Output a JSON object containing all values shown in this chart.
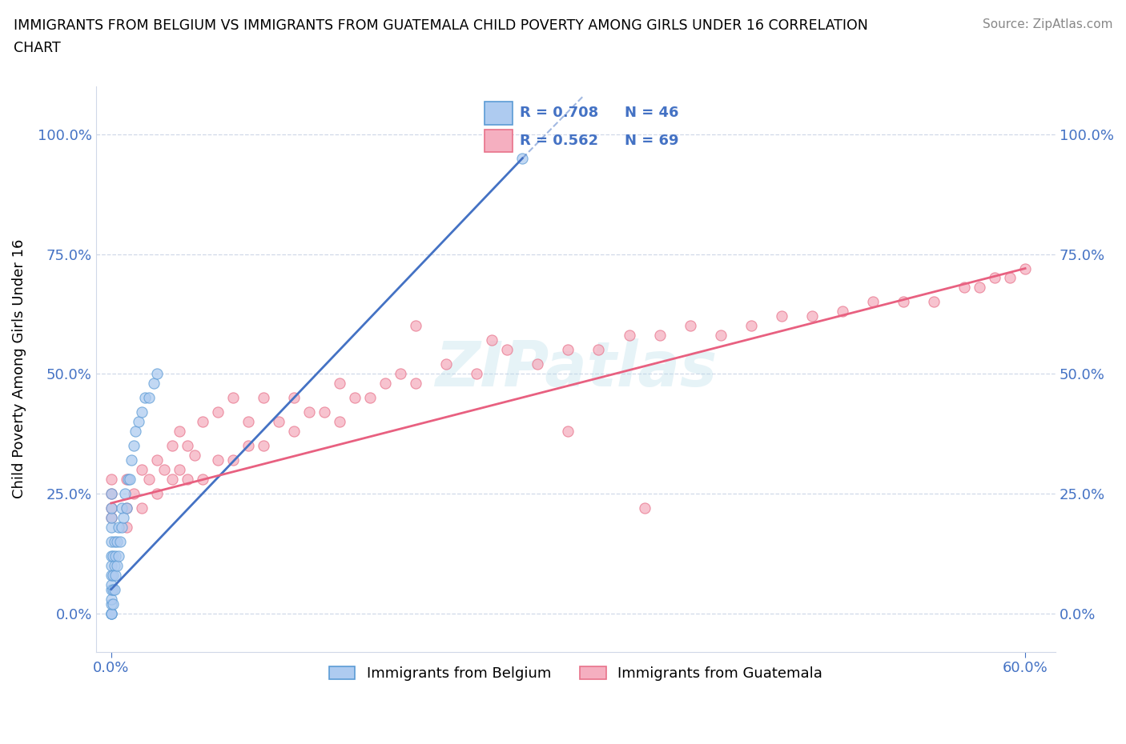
{
  "title": "IMMIGRANTS FROM BELGIUM VS IMMIGRANTS FROM GUATEMALA CHILD POVERTY AMONG GIRLS UNDER 16 CORRELATION\nCHART",
  "source": "Source: ZipAtlas.com",
  "ylabel": "Child Poverty Among Girls Under 16",
  "xlim": [
    -0.01,
    0.62
  ],
  "ylim": [
    -0.08,
    1.1
  ],
  "yticks": [
    0.0,
    0.25,
    0.5,
    0.75,
    1.0
  ],
  "ytick_labels": [
    "0.0%",
    "25.0%",
    "50.0%",
    "75.0%",
    "100.0%"
  ],
  "xtick_labels": [
    "0.0%",
    "60.0%"
  ],
  "xtick_positions": [
    0.0,
    0.6
  ],
  "belgium_color": "#aecbf0",
  "guatemala_color": "#f5afc0",
  "belgium_edge_color": "#5b9bd5",
  "guatemala_edge_color": "#e8728a",
  "belgium_line_color": "#4472c4",
  "guatemala_line_color": "#e86080",
  "R_belgium": 0.708,
  "N_belgium": 46,
  "R_guatemala": 0.562,
  "N_guatemala": 69,
  "watermark": "ZIPatlas",
  "tick_color": "#4472c4",
  "grid_color": "#d0d8e8",
  "belgium_scatter_x": [
    0.0,
    0.0,
    0.0,
    0.0,
    0.0,
    0.0,
    0.0,
    0.0,
    0.0,
    0.0,
    0.0,
    0.0,
    0.0,
    0.0,
    0.0,
    0.001,
    0.001,
    0.001,
    0.001,
    0.002,
    0.002,
    0.002,
    0.003,
    0.003,
    0.004,
    0.004,
    0.005,
    0.005,
    0.006,
    0.007,
    0.007,
    0.008,
    0.009,
    0.01,
    0.011,
    0.012,
    0.013,
    0.015,
    0.016,
    0.018,
    0.02,
    0.022,
    0.025,
    0.028,
    0.03,
    0.27
  ],
  "belgium_scatter_y": [
    0.0,
    0.0,
    0.0,
    0.02,
    0.03,
    0.05,
    0.06,
    0.08,
    0.1,
    0.12,
    0.15,
    0.18,
    0.2,
    0.22,
    0.25,
    0.02,
    0.05,
    0.08,
    0.12,
    0.05,
    0.1,
    0.15,
    0.08,
    0.12,
    0.1,
    0.15,
    0.12,
    0.18,
    0.15,
    0.18,
    0.22,
    0.2,
    0.25,
    0.22,
    0.28,
    0.28,
    0.32,
    0.35,
    0.38,
    0.4,
    0.42,
    0.45,
    0.45,
    0.48,
    0.5,
    0.95
  ],
  "guatemala_scatter_x": [
    0.0,
    0.0,
    0.0,
    0.0,
    0.01,
    0.01,
    0.01,
    0.015,
    0.02,
    0.02,
    0.025,
    0.03,
    0.03,
    0.035,
    0.04,
    0.04,
    0.045,
    0.045,
    0.05,
    0.05,
    0.055,
    0.06,
    0.06,
    0.07,
    0.07,
    0.08,
    0.08,
    0.09,
    0.09,
    0.1,
    0.1,
    0.11,
    0.12,
    0.12,
    0.13,
    0.14,
    0.15,
    0.15,
    0.16,
    0.17,
    0.18,
    0.19,
    0.2,
    0.22,
    0.24,
    0.26,
    0.28,
    0.3,
    0.32,
    0.34,
    0.36,
    0.38,
    0.4,
    0.42,
    0.44,
    0.46,
    0.48,
    0.5,
    0.52,
    0.54,
    0.56,
    0.57,
    0.58,
    0.59,
    0.6,
    0.2,
    0.25,
    0.3,
    0.35
  ],
  "guatemala_scatter_y": [
    0.2,
    0.22,
    0.25,
    0.28,
    0.18,
    0.22,
    0.28,
    0.25,
    0.22,
    0.3,
    0.28,
    0.25,
    0.32,
    0.3,
    0.28,
    0.35,
    0.3,
    0.38,
    0.28,
    0.35,
    0.33,
    0.28,
    0.4,
    0.32,
    0.42,
    0.32,
    0.45,
    0.35,
    0.4,
    0.35,
    0.45,
    0.4,
    0.38,
    0.45,
    0.42,
    0.42,
    0.4,
    0.48,
    0.45,
    0.45,
    0.48,
    0.5,
    0.48,
    0.52,
    0.5,
    0.55,
    0.52,
    0.55,
    0.55,
    0.58,
    0.58,
    0.6,
    0.58,
    0.6,
    0.62,
    0.62,
    0.63,
    0.65,
    0.65,
    0.65,
    0.68,
    0.68,
    0.7,
    0.7,
    0.72,
    0.6,
    0.57,
    0.38,
    0.22
  ],
  "bel_line_x0": 0.0,
  "bel_line_x1": 0.27,
  "bel_line_y0": 0.05,
  "bel_line_y1": 0.95,
  "gua_line_x0": 0.0,
  "gua_line_x1": 0.6,
  "gua_line_y0": 0.23,
  "gua_line_y1": 0.72
}
